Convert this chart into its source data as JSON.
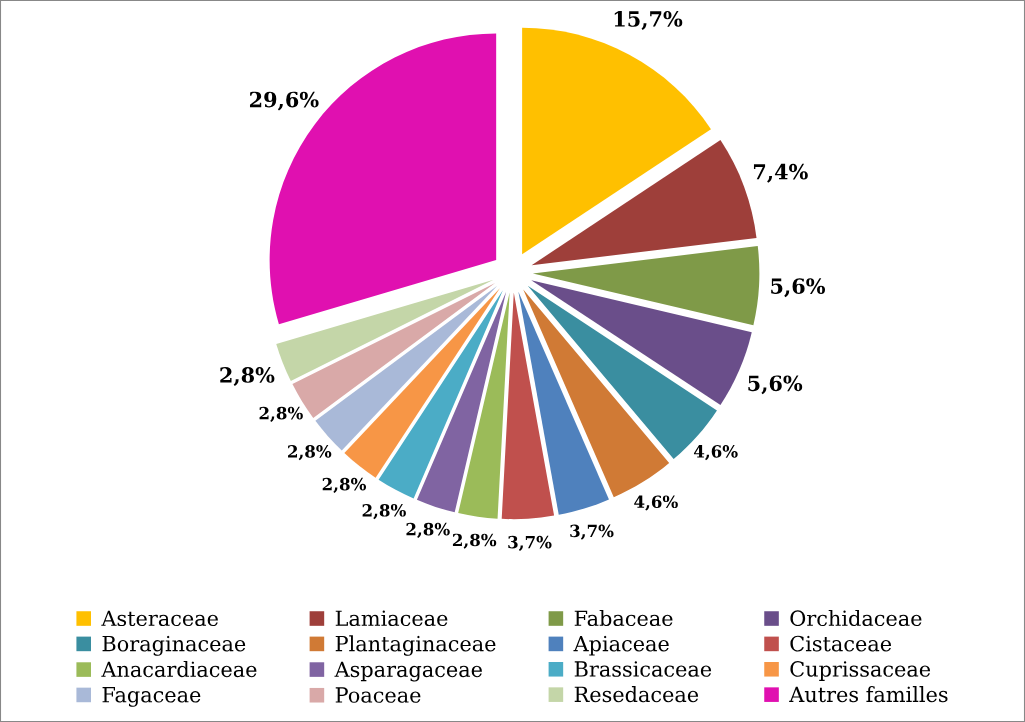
{
  "chart_data": {
    "type": "pie",
    "categories": [
      "Asteraceae",
      "Lamiaceae",
      "Fabaceae",
      "Orchidaceae",
      "Boraginaceae",
      "Plantaginaceae",
      "Apiaceae",
      "Cistaceae",
      "Anacardiaceae",
      "Asparagaceae",
      "Brassicaceae",
      "Cuprissaceae",
      "Fagaceae",
      "Poaceae",
      "Resedaceae",
      "Autres familles"
    ],
    "values": [
      15.7,
      7.4,
      5.6,
      5.6,
      4.6,
      4.6,
      3.7,
      3.7,
      2.8,
      2.8,
      2.8,
      2.8,
      2.8,
      2.8,
      2.8,
      29.6
    ],
    "value_labels": [
      "15,7%",
      "7,4%",
      "5,6%",
      "5,6%",
      "4,6%",
      "4,6%",
      "3,7%",
      "3,7%",
      "2,8%",
      "2,8%",
      "2,8%",
      "2,8%",
      "2,8%",
      "2,8%",
      "2,8%",
      "29,6%"
    ],
    "colors": [
      "#ffc000",
      "#9e3f3a",
      "#7f9a48",
      "#6a4e8a",
      "#3a8ea0",
      "#d07a35",
      "#4f81bd",
      "#c0504d",
      "#9bbb59",
      "#8064a2",
      "#4bacc6",
      "#f79646",
      "#a9b9d8",
      "#d9a9a8",
      "#c4d6a8",
      "#e010b0"
    ],
    "legend": "bottom"
  }
}
